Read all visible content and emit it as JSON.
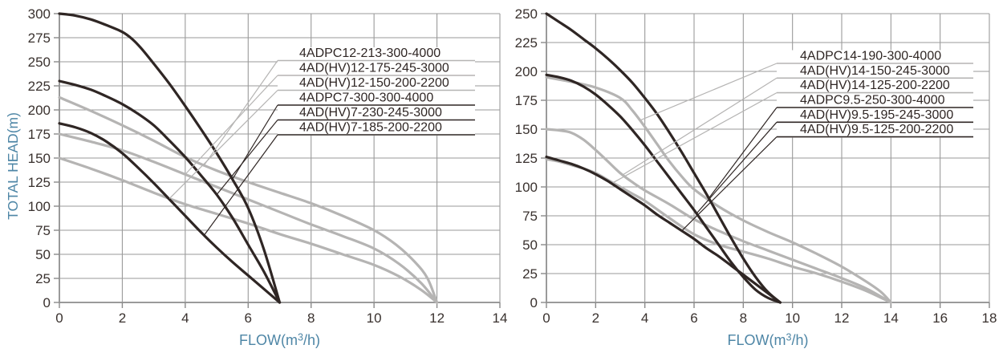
{
  "figure": {
    "background": "#ffffff",
    "grid_color": "#9a9a9a",
    "axis_color": "#8a8a8a",
    "tick_text_color": "#39312e",
    "axis_title_color": "#4e86a6",
    "dark_curve_color": "#2f2624",
    "gray_curve_color": "#b5b4b3",
    "label_text_color": "#2f2624",
    "label_band_color": "#ffffff"
  },
  "chart_data": [
    {
      "type": "line",
      "name": "left-pump-curve-chart",
      "xlabel": "FLOW(m³/h)",
      "ylabel": "TOTAL HEAD(m)",
      "xlim": [
        0,
        14
      ],
      "ylim": [
        0,
        300
      ],
      "xticks": [
        0,
        2,
        4,
        6,
        8,
        10,
        12,
        14
      ],
      "yticks": [
        0,
        25,
        50,
        75,
        100,
        125,
        150,
        175,
        200,
        225,
        250,
        275,
        300
      ],
      "grid": true,
      "legend_position": "top-right callouts",
      "series": [
        {
          "name": "4ADPC12-213-300-4000",
          "family": "gray",
          "attach_x": 4.6,
          "points": [
            [
              0,
              213
            ],
            [
              1,
              199
            ],
            [
              2,
              184
            ],
            [
              3,
              168
            ],
            [
              4,
              151
            ],
            [
              5,
              137
            ],
            [
              6,
              125
            ],
            [
              7,
              114
            ],
            [
              8,
              103
            ],
            [
              9,
              90
            ],
            [
              10,
              75
            ],
            [
              10.7,
              60
            ],
            [
              11.3,
              42
            ],
            [
              11.7,
              25
            ],
            [
              12,
              0
            ]
          ]
        },
        {
          "name": "4AD(HV)12-175-245-3000",
          "family": "gray",
          "attach_x": 4.0,
          "points": [
            [
              0,
              175
            ],
            [
              1,
              167
            ],
            [
              2,
              158
            ],
            [
              3,
              146
            ],
            [
              4,
              133
            ],
            [
              5,
              120
            ],
            [
              6,
              107
            ],
            [
              7,
              94
            ],
            [
              8,
              81
            ],
            [
              9,
              69
            ],
            [
              10,
              56
            ],
            [
              10.8,
              40
            ],
            [
              11.5,
              20
            ],
            [
              12,
              0
            ]
          ]
        },
        {
          "name": "4AD(HV)12-150-200-2200",
          "family": "gray",
          "attach_x": 3.5,
          "points": [
            [
              0,
              150
            ],
            [
              1,
              139
            ],
            [
              2,
              127
            ],
            [
              3,
              114
            ],
            [
              4,
              102
            ],
            [
              5,
              92
            ],
            [
              6,
              82
            ],
            [
              7,
              71
            ],
            [
              8,
              61
            ],
            [
              9,
              50
            ],
            [
              10,
              39
            ],
            [
              10.8,
              27
            ],
            [
              11.5,
              13
            ],
            [
              12,
              0
            ]
          ]
        },
        {
          "name": "4ADPC7-300-300-4000",
          "family": "dark",
          "attach_x": 5.5,
          "points": [
            [
              0,
              300
            ],
            [
              0.5,
              298
            ],
            [
              1,
              294
            ],
            [
              1.5,
              288
            ],
            [
              2,
              281
            ],
            [
              2.3,
              274
            ],
            [
              2.6,
              264
            ],
            [
              3,
              248
            ],
            [
              3.5,
              227
            ],
            [
              4,
              204
            ],
            [
              4.5,
              180
            ],
            [
              5,
              155
            ],
            [
              5.5,
              128
            ],
            [
              6,
              98
            ],
            [
              6.5,
              55
            ],
            [
              7,
              0
            ]
          ]
        },
        {
          "name": "4AD(HV)7-230-245-3000",
          "family": "dark",
          "attach_x": 5.0,
          "points": [
            [
              0,
              230
            ],
            [
              0.5,
              226
            ],
            [
              1,
              221
            ],
            [
              1.5,
              214
            ],
            [
              2,
              206
            ],
            [
              2.5,
              196
            ],
            [
              3,
              184
            ],
            [
              3.5,
              168
            ],
            [
              4,
              151
            ],
            [
              4.5,
              132
            ],
            [
              5,
              112
            ],
            [
              5.5,
              88
            ],
            [
              6,
              60
            ],
            [
              6.5,
              32
            ],
            [
              7,
              0
            ]
          ]
        },
        {
          "name": "4AD(HV)7-185-200-2200",
          "family": "dark",
          "attach_x": 4.6,
          "points": [
            [
              0,
              186
            ],
            [
              0.5,
              182
            ],
            [
              1,
              176
            ],
            [
              1.5,
              167
            ],
            [
              2,
              155
            ],
            [
              2.5,
              140
            ],
            [
              3,
              124
            ],
            [
              3.5,
              107
            ],
            [
              4,
              90
            ],
            [
              4.5,
              73
            ],
            [
              5,
              57
            ],
            [
              5.5,
              42
            ],
            [
              6,
              28
            ],
            [
              6.5,
              14
            ],
            [
              7,
              0
            ]
          ]
        }
      ]
    },
    {
      "type": "line",
      "name": "right-pump-curve-chart",
      "xlabel": "FLOW(m³/h)",
      "ylabel": "",
      "xlim": [
        0,
        18
      ],
      "ylim": [
        0,
        250
      ],
      "xticks": [
        0,
        2,
        4,
        6,
        8,
        10,
        12,
        14,
        16,
        18
      ],
      "yticks": [
        0,
        25,
        50,
        75,
        100,
        125,
        150,
        175,
        200,
        225,
        250
      ],
      "grid": true,
      "legend_position": "top-right callouts",
      "series": [
        {
          "name": "4ADPC14-190-300-4000",
          "family": "gray",
          "attach_x": 3.8,
          "points": [
            [
              0,
              195
            ],
            [
              1,
              191
            ],
            [
              2,
              186
            ],
            [
              3,
              177
            ],
            [
              3.5,
              166
            ],
            [
              4,
              152
            ],
            [
              4.5,
              137
            ],
            [
              5,
              122
            ],
            [
              5.5,
              109
            ],
            [
              6,
              98
            ],
            [
              7,
              83
            ],
            [
              8,
              71
            ],
            [
              9,
              61
            ],
            [
              10,
              52
            ],
            [
              11,
              42
            ],
            [
              12,
              31
            ],
            [
              13,
              18
            ],
            [
              13.6,
              9
            ],
            [
              14,
              0
            ]
          ]
        },
        {
          "name": "4AD(HV)14-150-245-3000",
          "family": "gray",
          "attach_x": 3.1,
          "points": [
            [
              0,
              150
            ],
            [
              0.5,
              149
            ],
            [
              1,
              147
            ],
            [
              1.5,
              141
            ],
            [
              2,
              132
            ],
            [
              2.5,
              122
            ],
            [
              3,
              112
            ],
            [
              3.5,
              104
            ],
            [
              4,
              97
            ],
            [
              5,
              85
            ],
            [
              6,
              72
            ],
            [
              7,
              62
            ],
            [
              8,
              53
            ],
            [
              9,
              45
            ],
            [
              10,
              37
            ],
            [
              11,
              29
            ],
            [
              12,
              21
            ],
            [
              13,
              12
            ],
            [
              14,
              0
            ]
          ]
        },
        {
          "name": "4AD(HV)14-125-200-2200",
          "family": "gray",
          "attach_x": 2.7,
          "points": [
            [
              0,
              124
            ],
            [
              0.5,
              122
            ],
            [
              1,
              119
            ],
            [
              1.5,
              116
            ],
            [
              2,
              112
            ],
            [
              2.5,
              106
            ],
            [
              3,
              100
            ],
            [
              3.5,
              94
            ],
            [
              4,
              88
            ],
            [
              5,
              73
            ],
            [
              6,
              59
            ],
            [
              7,
              50
            ],
            [
              8,
              44
            ],
            [
              9,
              38
            ],
            [
              10,
              31
            ],
            [
              11,
              25
            ],
            [
              12,
              18
            ],
            [
              13,
              10
            ],
            [
              14,
              0
            ]
          ]
        },
        {
          "name": "4ADPC9.5-250-300-4000",
          "family": "dark",
          "attach_x": 6.6,
          "points": [
            [
              0,
              250
            ],
            [
              0.5,
              243
            ],
            [
              1,
              236
            ],
            [
              1.5,
              228
            ],
            [
              2,
              220
            ],
            [
              2.5,
              211
            ],
            [
              3,
              201
            ],
            [
              3.5,
              190
            ],
            [
              4,
              177
            ],
            [
              4.5,
              163
            ],
            [
              5,
              147
            ],
            [
              5.5,
              130
            ],
            [
              6,
              112
            ],
            [
              6.5,
              94
            ],
            [
              7,
              75
            ],
            [
              7.5,
              56
            ],
            [
              8,
              38
            ],
            [
              8.5,
              22
            ],
            [
              9,
              9
            ],
            [
              9.5,
              0
            ]
          ]
        },
        {
          "name": "4AD(HV)9.5-195-245-3000",
          "family": "dark",
          "attach_x": 6.1,
          "points": [
            [
              0,
              197
            ],
            [
              0.5,
              195
            ],
            [
              1,
              192
            ],
            [
              1.5,
              187
            ],
            [
              2,
              180
            ],
            [
              2.5,
              171
            ],
            [
              3,
              161
            ],
            [
              3.5,
              149
            ],
            [
              4,
              136
            ],
            [
              4.5,
              122
            ],
            [
              5,
              108
            ],
            [
              5.5,
              94
            ],
            [
              6,
              80
            ],
            [
              6.5,
              65
            ],
            [
              7,
              50
            ],
            [
              7.5,
              35
            ],
            [
              8,
              22
            ],
            [
              8.5,
              11
            ],
            [
              9,
              4
            ],
            [
              9.5,
              0
            ]
          ]
        },
        {
          "name": "4AD(HV)9.5-125-200-2200",
          "family": "dark",
          "attach_x": 5.5,
          "points": [
            [
              0,
              126
            ],
            [
              0.5,
              123
            ],
            [
              1,
              120
            ],
            [
              1.5,
              116
            ],
            [
              2,
              111
            ],
            [
              2.5,
              105
            ],
            [
              3,
              98
            ],
            [
              3.5,
              91
            ],
            [
              4,
              84
            ],
            [
              4.5,
              76
            ],
            [
              5,
              69
            ],
            [
              5.5,
              62
            ],
            [
              6,
              55
            ],
            [
              6.5,
              47
            ],
            [
              7,
              40
            ],
            [
              7.5,
              32
            ],
            [
              8,
              24
            ],
            [
              8.5,
              16
            ],
            [
              9,
              8
            ],
            [
              9.5,
              0
            ]
          ]
        }
      ]
    }
  ]
}
